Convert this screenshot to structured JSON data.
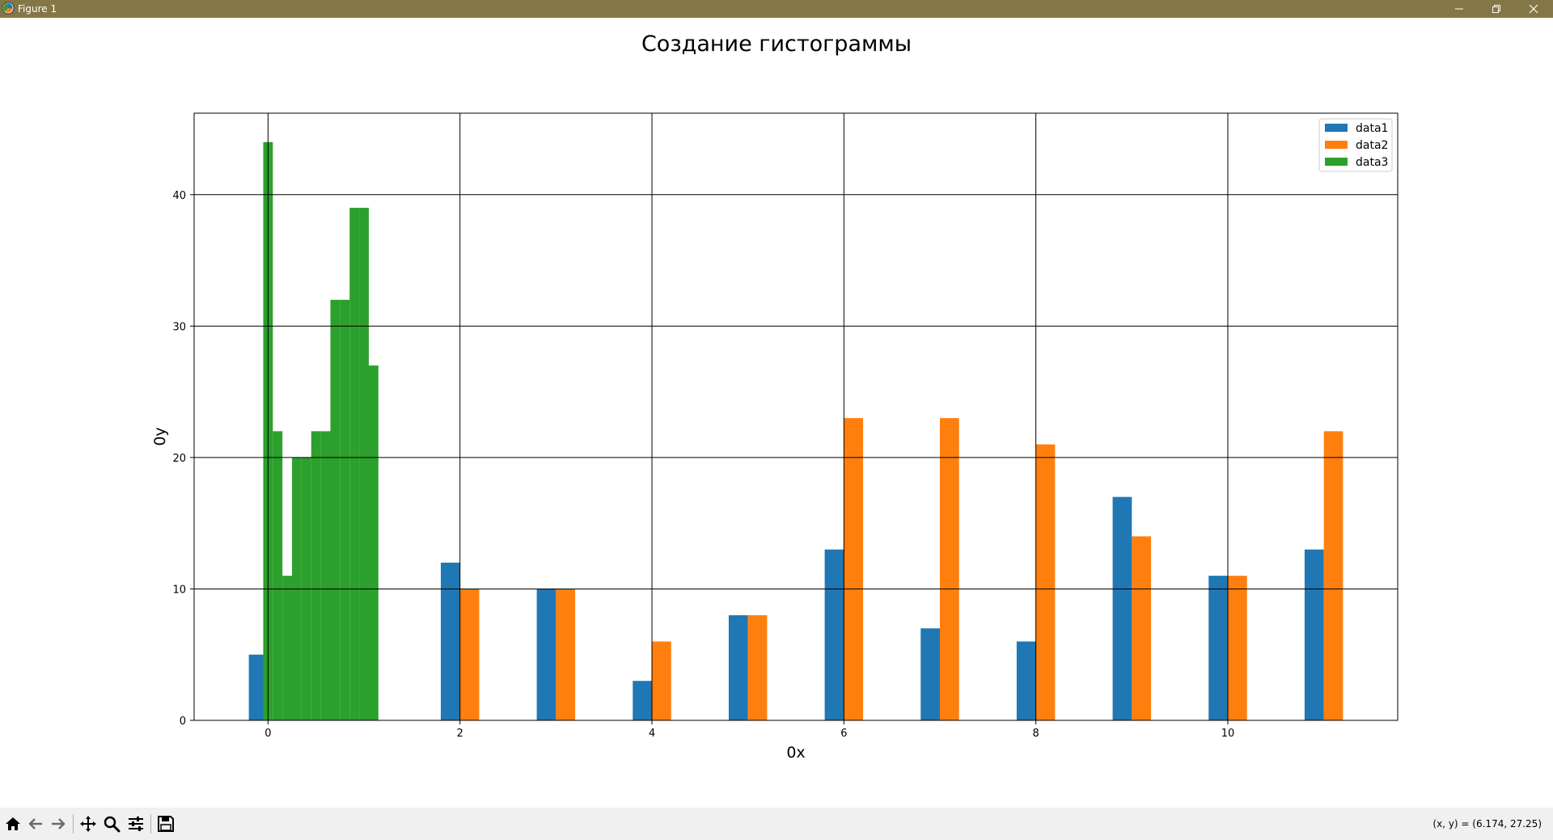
{
  "window": {
    "title": "Figure 1",
    "controls": [
      "minimize-icon",
      "restore-icon",
      "close-icon"
    ],
    "titlebar_color": "#847646"
  },
  "toolbar": {
    "buttons": [
      "home-icon",
      "back-icon",
      "forward-icon",
      "pan-icon",
      "zoom-icon",
      "configure-subplots-icon",
      "save-icon"
    ],
    "coord_readout": "(x, y) = (6.174, 27.25)"
  },
  "chart_data": {
    "type": "bar",
    "title": "Создание гистограммы",
    "xlabel": "0x",
    "ylabel": "0y",
    "xlim": [
      -0.77,
      11.77
    ],
    "ylim": [
      0,
      46.2
    ],
    "xticks": [
      0,
      2,
      4,
      6,
      8,
      10
    ],
    "yticks": [
      0,
      10,
      20,
      30,
      40
    ],
    "grid": true,
    "grid_color": "#000000",
    "legend_position": "top-right",
    "series": [
      {
        "name": "data1",
        "color": "#1f77b4",
        "bar_width": 0.2,
        "x": [
          -0.1,
          1.9,
          2.9,
          3.9,
          4.9,
          5.9,
          6.9,
          7.9,
          8.9,
          9.9,
          10.9
        ],
        "values": [
          5,
          12,
          10,
          3,
          8,
          13,
          7,
          6,
          17,
          11,
          13
        ]
      },
      {
        "name": "data2",
        "color": "#ff7f0e",
        "bar_width": 0.2,
        "x": [
          2.1,
          3.1,
          4.1,
          5.1,
          6.1,
          7.1,
          8.1,
          9.1,
          10.1,
          11.1
        ],
        "values": [
          10,
          10,
          6,
          8,
          23,
          23,
          21,
          14,
          11,
          22
        ]
      },
      {
        "name": "data3",
        "color": "#2ca02c",
        "bar_width": 0.1,
        "x": [
          0.0,
          0.1,
          0.2,
          0.3,
          0.4,
          0.5,
          0.6,
          0.7,
          0.8,
          0.9,
          1.0,
          1.1
        ],
        "values": [
          44,
          22,
          11,
          20,
          20,
          22,
          22,
          32,
          32,
          39,
          39,
          27
        ]
      }
    ]
  }
}
